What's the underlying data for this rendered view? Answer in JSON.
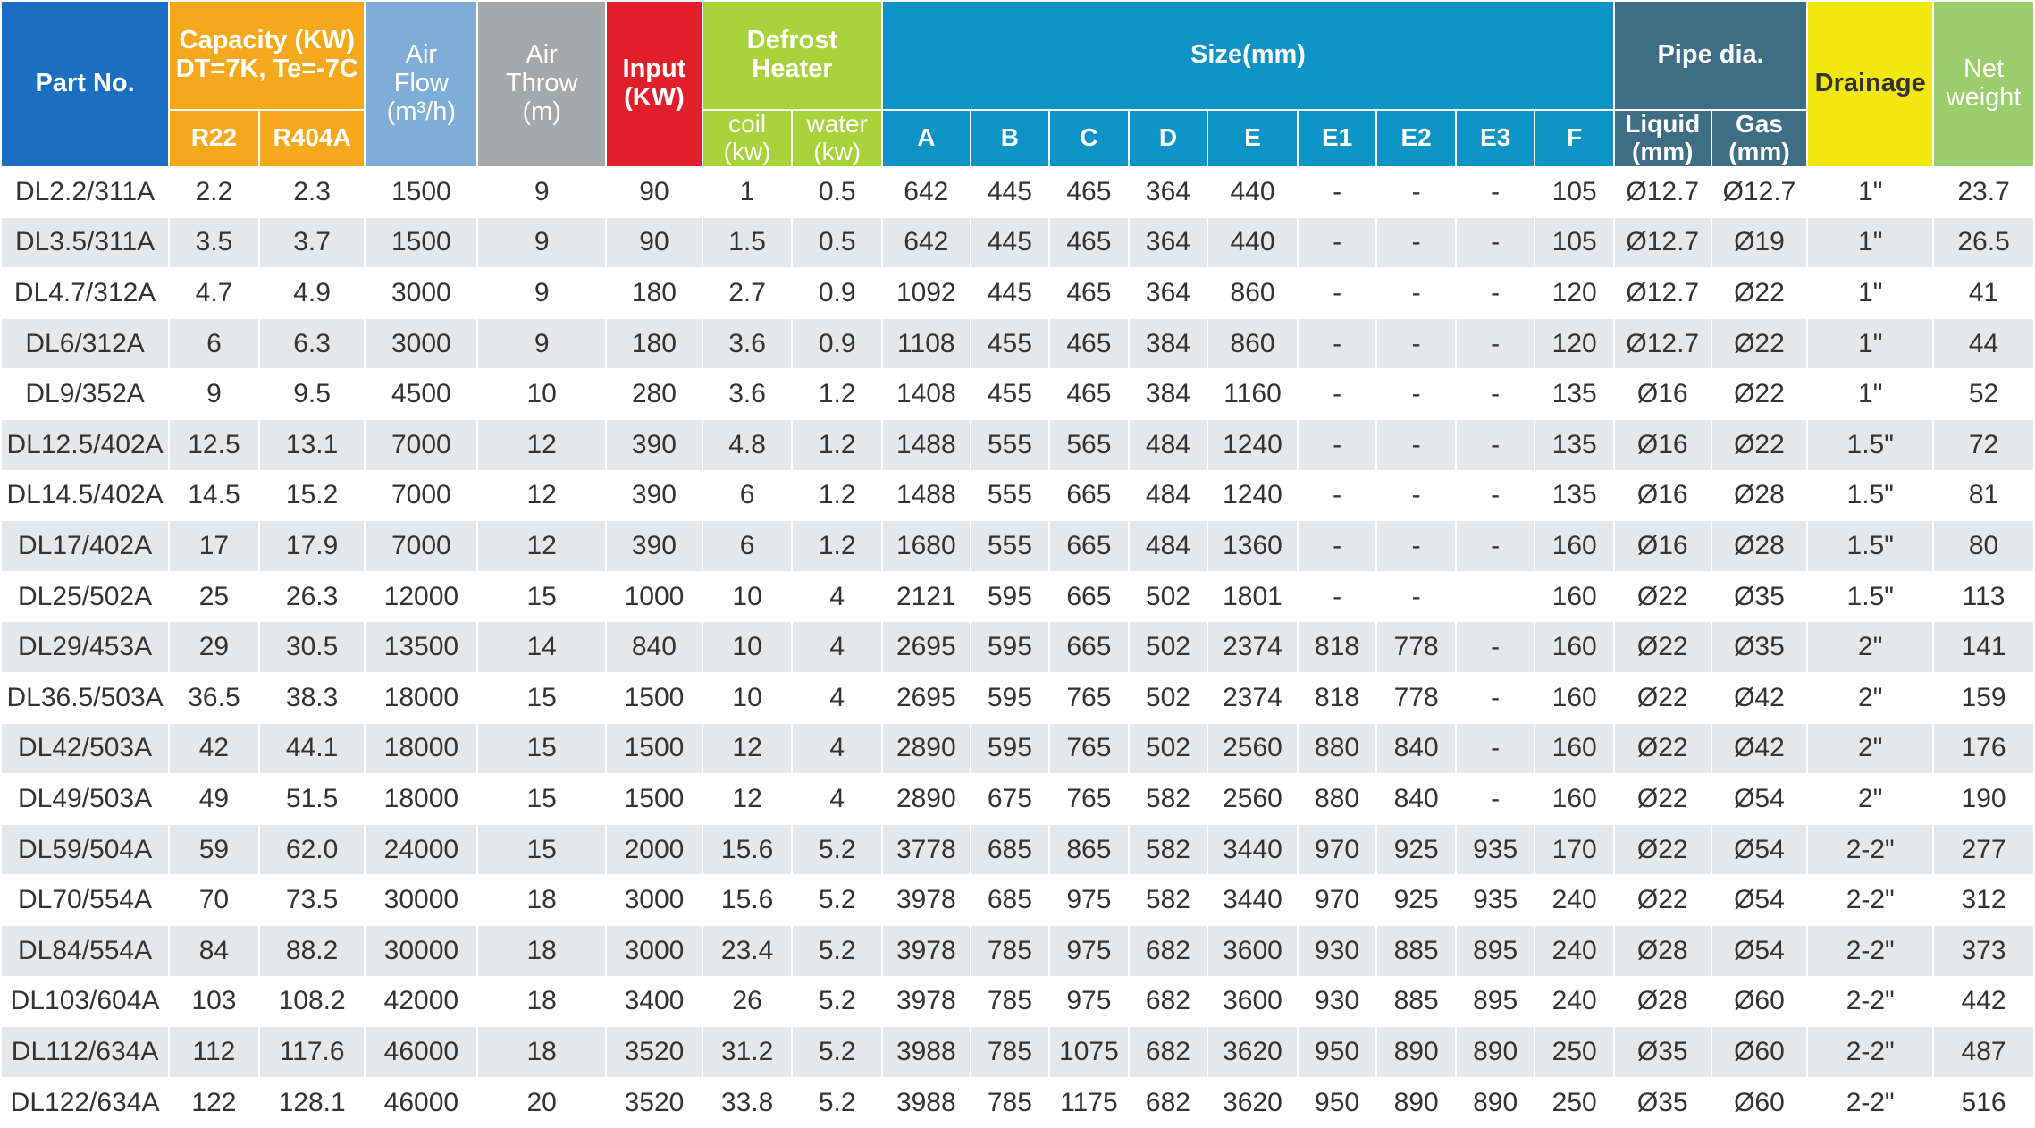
{
  "headers": {
    "part_no": "Part No.",
    "capacity": "Capacity (KW)",
    "capacity_cond": "DT=7K, Te=-7C",
    "r22": "R22",
    "r404a": "R404A",
    "air_flow_1": "Air",
    "air_flow_2": "Flow",
    "air_flow_unit": "(m³/h)",
    "air_throw_1": "Air",
    "air_throw_2": "Throw",
    "air_throw_unit": "(m)",
    "input": "Input",
    "input_unit": "(KW)",
    "defrost_1": "Defrost",
    "defrost_2": "Heater",
    "coil": "coil",
    "coil_unit": "(kw)",
    "water": "water",
    "water_unit": "(kw)",
    "size": "Size(mm)",
    "A": "A",
    "B": "B",
    "C": "C",
    "D": "D",
    "E": "E",
    "E1": "E1",
    "E2": "E2",
    "E3": "E3",
    "F": "F",
    "pipe_dia": "Pipe dia.",
    "liquid": "Liquid",
    "liquid_unit": "(mm)",
    "gas": "Gas",
    "gas_unit": "(mm)",
    "drainage": "Drainage",
    "net_weight_1": "Net",
    "net_weight_2": "weight"
  },
  "colors": {
    "part_no": "#1c6fc0",
    "capacity": "#f6a81c",
    "air_flow": "#7eaed8",
    "air_throw": "#a5a7a9",
    "input": "#e11f2b",
    "defrost": "#a7d23a",
    "size": "#0d93c6",
    "pipe": "#3e6d86",
    "drainage": "#f2e70e",
    "net_weight": "#9ccd6c"
  },
  "rows": [
    [
      "DL2.2/311A",
      "2.2",
      "2.3",
      "1500",
      "9",
      "90",
      "1",
      "0.5",
      "642",
      "445",
      "465",
      "364",
      "440",
      "-",
      "-",
      "-",
      "105",
      "Ø12.7",
      "Ø12.7",
      "1\"",
      "23.7"
    ],
    [
      "DL3.5/311A",
      "3.5",
      "3.7",
      "1500",
      "9",
      "90",
      "1.5",
      "0.5",
      "642",
      "445",
      "465",
      "364",
      "440",
      "-",
      "-",
      "-",
      "105",
      "Ø12.7",
      "Ø19",
      "1\"",
      "26.5"
    ],
    [
      "DL4.7/312A",
      "4.7",
      "4.9",
      "3000",
      "9",
      "180",
      "2.7",
      "0.9",
      "1092",
      "445",
      "465",
      "364",
      "860",
      "-",
      "-",
      "-",
      "120",
      "Ø12.7",
      "Ø22",
      "1\"",
      "41"
    ],
    [
      "DL6/312A",
      "6",
      "6.3",
      "3000",
      "9",
      "180",
      "3.6",
      "0.9",
      "1108",
      "455",
      "465",
      "384",
      "860",
      "-",
      "-",
      "-",
      "120",
      "Ø12.7",
      "Ø22",
      "1\"",
      "44"
    ],
    [
      "DL9/352A",
      "9",
      "9.5",
      "4500",
      "10",
      "280",
      "3.6",
      "1.2",
      "1408",
      "455",
      "465",
      "384",
      "1160",
      "-",
      "-",
      "-",
      "135",
      "Ø16",
      "Ø22",
      "1\"",
      "52"
    ],
    [
      "DL12.5/402A",
      "12.5",
      "13.1",
      "7000",
      "12",
      "390",
      "4.8",
      "1.2",
      "1488",
      "555",
      "565",
      "484",
      "1240",
      "-",
      "-",
      "-",
      "135",
      "Ø16",
      "Ø22",
      "1.5\"",
      "72"
    ],
    [
      "DL14.5/402A",
      "14.5",
      "15.2",
      "7000",
      "12",
      "390",
      "6",
      "1.2",
      "1488",
      "555",
      "665",
      "484",
      "1240",
      "-",
      "-",
      "-",
      "135",
      "Ø16",
      "Ø28",
      "1.5\"",
      "81"
    ],
    [
      "DL17/402A",
      "17",
      "17.9",
      "7000",
      "12",
      "390",
      "6",
      "1.2",
      "1680",
      "555",
      "665",
      "484",
      "1360",
      "-",
      "-",
      "-",
      "160",
      "Ø16",
      "Ø28",
      "1.5\"",
      "80"
    ],
    [
      "DL25/502A",
      "25",
      "26.3",
      "12000",
      "15",
      "1000",
      "10",
      "4",
      "2121",
      "595",
      "665",
      "502",
      "1801",
      "-",
      "-",
      "",
      "160",
      "Ø22",
      "Ø35",
      "1.5\"",
      "113"
    ],
    [
      "DL29/453A",
      "29",
      "30.5",
      "13500",
      "14",
      "840",
      "10",
      "4",
      "2695",
      "595",
      "665",
      "502",
      "2374",
      "818",
      "778",
      "-",
      "160",
      "Ø22",
      "Ø35",
      "2\"",
      "141"
    ],
    [
      "DL36.5/503A",
      "36.5",
      "38.3",
      "18000",
      "15",
      "1500",
      "10",
      "4",
      "2695",
      "595",
      "765",
      "502",
      "2374",
      "818",
      "778",
      "-",
      "160",
      "Ø22",
      "Ø42",
      "2\"",
      "159"
    ],
    [
      "DL42/503A",
      "42",
      "44.1",
      "18000",
      "15",
      "1500",
      "12",
      "4",
      "2890",
      "595",
      "765",
      "502",
      "2560",
      "880",
      "840",
      "-",
      "160",
      "Ø22",
      "Ø42",
      "2\"",
      "176"
    ],
    [
      "DL49/503A",
      "49",
      "51.5",
      "18000",
      "15",
      "1500",
      "12",
      "4",
      "2890",
      "675",
      "765",
      "582",
      "2560",
      "880",
      "840",
      "-",
      "160",
      "Ø22",
      "Ø54",
      "2\"",
      "190"
    ],
    [
      "DL59/504A",
      "59",
      "62.0",
      "24000",
      "15",
      "2000",
      "15.6",
      "5.2",
      "3778",
      "685",
      "865",
      "582",
      "3440",
      "970",
      "925",
      "935",
      "170",
      "Ø22",
      "Ø54",
      "2-2\"",
      "277"
    ],
    [
      "DL70/554A",
      "70",
      "73.5",
      "30000",
      "18",
      "3000",
      "15.6",
      "5.2",
      "3978",
      "685",
      "975",
      "582",
      "3440",
      "970",
      "925",
      "935",
      "240",
      "Ø22",
      "Ø54",
      "2-2\"",
      "312"
    ],
    [
      "DL84/554A",
      "84",
      "88.2",
      "30000",
      "18",
      "3000",
      "23.4",
      "5.2",
      "3978",
      "785",
      "975",
      "682",
      "3600",
      "930",
      "885",
      "895",
      "240",
      "Ø28",
      "Ø54",
      "2-2\"",
      "373"
    ],
    [
      "DL103/604A",
      "103",
      "108.2",
      "42000",
      "18",
      "3400",
      "26",
      "5.2",
      "3978",
      "785",
      "975",
      "682",
      "3600",
      "930",
      "885",
      "895",
      "240",
      "Ø28",
      "Ø60",
      "2-2\"",
      "442"
    ],
    [
      "DL112/634A",
      "112",
      "117.6",
      "46000",
      "18",
      "3520",
      "31.2",
      "5.2",
      "3988",
      "785",
      "1075",
      "682",
      "3620",
      "950",
      "890",
      "890",
      "250",
      "Ø35",
      "Ø60",
      "2-2\"",
      "487"
    ],
    [
      "DL122/634A",
      "122",
      "128.1",
      "46000",
      "20",
      "3520",
      "33.8",
      "5.2",
      "3988",
      "785",
      "1175",
      "682",
      "3620",
      "950",
      "890",
      "890",
      "250",
      "Ø35",
      "Ø60",
      "2-2\"",
      "516"
    ]
  ]
}
